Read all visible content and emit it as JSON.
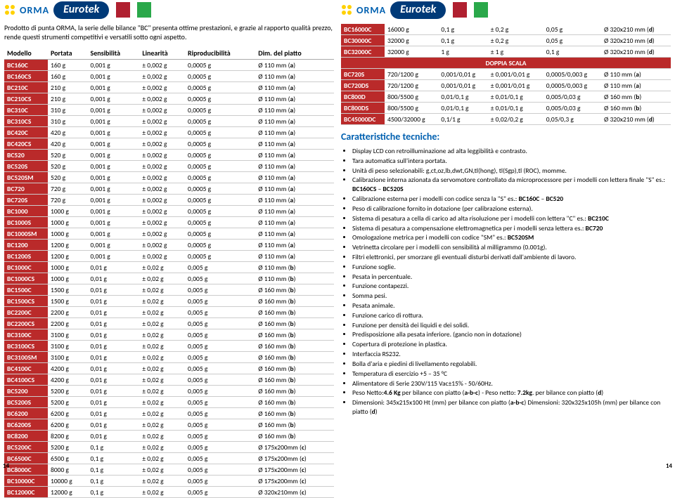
{
  "brand": {
    "a": "ORMA",
    "b": "Eurotek"
  },
  "intro": "Prodotto di punta ORMA, la serie delle bilance \"BC\" presenta ottime prestazioni, e grazie al rapporto qualità prezzo, rende questi strumenti competitivi e versatili sotto ogni aspetto.",
  "headers": [
    "Modello",
    "Portata",
    "Sensibilità",
    "Linearità",
    "Riproducibilità",
    "Dim. del piatto"
  ],
  "rowsL": [
    [
      "BC160C",
      "160 g",
      "0,001 g",
      "± 0,002 g",
      "0,0005 g",
      "Ø 110 mm (a)"
    ],
    [
      "BC160CS",
      "160 g",
      "0,001 g",
      "± 0,002 g",
      "0,0005 g",
      "Ø 110 mm (a)"
    ],
    [
      "BC210C",
      "210 g",
      "0,001 g",
      "± 0,002 g",
      "0,0005 g",
      "Ø 110 mm (a)"
    ],
    [
      "BC210CS",
      "210 g",
      "0,001 g",
      "± 0,002 g",
      "0,0005 g",
      "Ø 110 mm (a)"
    ],
    [
      "BC310C",
      "310 g",
      "0,001 g",
      "± 0,002 g",
      "0,0005 g",
      "Ø 110 mm (a)"
    ],
    [
      "BC310CS",
      "310 g",
      "0,001 g",
      "± 0,002 g",
      "0,0005 g",
      "Ø 110 mm (a)"
    ],
    [
      "BC420C",
      "420 g",
      "0,001 g",
      "± 0,002 g",
      "0,0005 g",
      "Ø 110 mm (a)"
    ],
    [
      "BC420CS",
      "420 g",
      "0,001 g",
      "± 0,002 g",
      "0,0005 g",
      "Ø 110 mm (a)"
    ],
    [
      "BC520",
      "520 g",
      "0,001 g",
      "± 0,002 g",
      "0,0005 g",
      "Ø 110 mm (a)"
    ],
    [
      "BC520S",
      "520 g",
      "0,001 g",
      "± 0,002 g",
      "0,0005 g",
      "Ø 110 mm (a)"
    ],
    [
      "BC520SM",
      "520 g",
      "0,001 g",
      "± 0,002 g",
      "0,0005 g",
      "Ø 110 mm (a)"
    ],
    [
      "BC720",
      "720 g",
      "0,001 g",
      "± 0,002 g",
      "0,0005 g",
      "Ø 110 mm (a)"
    ],
    [
      "BC720S",
      "720 g",
      "0,001 g",
      "± 0,002 g",
      "0,0005 g",
      "Ø 110 mm (a)"
    ],
    [
      "BC1000",
      "1000 g",
      "0,001 g",
      "± 0,002 g",
      "0,0005 g",
      "Ø 110 mm (a)"
    ],
    [
      "BC1000S",
      "1000 g",
      "0,001 g",
      "± 0,002 g",
      "0,0005 g",
      "Ø 110 mm (a)"
    ],
    [
      "BC1000SM",
      "1000 g",
      "0,001 g",
      "± 0,002 g",
      "0,0005 g",
      "Ø 110 mm (a)"
    ],
    [
      "BC1200",
      "1200 g",
      "0,001 g",
      "± 0,002 g",
      "0,0005 g",
      "Ø 110 mm (a)"
    ],
    [
      "BC1200S",
      "1200 g",
      "0,001 g",
      "± 0,002 g",
      "0,0005 g",
      "Ø 110 mm (a)"
    ],
    [
      "BC1000C",
      "1000 g",
      "0,01 g",
      "± 0,02 g",
      "0,005 g",
      "Ø 110 mm (b)"
    ],
    [
      "BC1000CS",
      "1000 g",
      "0,01 g",
      "± 0,02 g",
      "0,005 g",
      "Ø 110 mm (b)"
    ],
    [
      "BC1500C",
      "1500 g",
      "0,01 g",
      "± 0,02 g",
      "0,005 g",
      "Ø 160 mm (b)"
    ],
    [
      "BC1500CS",
      "1500 g",
      "0,01 g",
      "± 0,02 g",
      "0,005 g",
      "Ø 160 mm (b)"
    ],
    [
      "BC2200C",
      "2200 g",
      "0,01 g",
      "± 0,02 g",
      "0,005 g",
      "Ø 160 mm (b)"
    ],
    [
      "BC2200CS",
      "2200 g",
      "0,01 g",
      "± 0,02 g",
      "0,005 g",
      "Ø 160 mm (b)"
    ],
    [
      "BC3100C",
      "3100 g",
      "0,01 g",
      "± 0,02 g",
      "0,005 g",
      "Ø 160 mm (b)"
    ],
    [
      "BC3100CS",
      "3100 g",
      "0,01 g",
      "± 0,02 g",
      "0,005 g",
      "Ø 160 mm (b)"
    ],
    [
      "BC3100SM",
      "3100 g",
      "0,01 g",
      "± 0,02 g",
      "0,005 g",
      "Ø 160 mm (b)"
    ],
    [
      "BC4100C",
      "4200 g",
      "0,01 g",
      "± 0,02 g",
      "0,005 g",
      "Ø 160 mm (b)"
    ],
    [
      "BC4100CS",
      "4200 g",
      "0,01 g",
      "± 0,02 g",
      "0,005 g",
      "Ø 160 mm (b)"
    ],
    [
      "BC5200",
      "5200 g",
      "0,01 g",
      "± 0,02 g",
      "0,005 g",
      "Ø 160 mm (b)"
    ],
    [
      "BC5200S",
      "5200 g",
      "0,01 g",
      "± 0,02 g",
      "0,005 g",
      "Ø 160 mm (b)"
    ],
    [
      "BC6200",
      "6200 g",
      "0,01 g",
      "± 0,02 g",
      "0,005 g",
      "Ø 160 mm (b)"
    ],
    [
      "BC6200S",
      "6200 g",
      "0,01 g",
      "± 0,02 g",
      "0,005 g",
      "Ø 160 mm (b)"
    ],
    [
      "BC8200",
      "8200 g",
      "0,01 g",
      "± 0,02 g",
      "0,005 g",
      "Ø 160 mm (b)"
    ],
    [
      "BC5200C",
      "5200 g",
      "0,1 g",
      "± 0,02 g",
      "0,005 g",
      "Ø 175x200mm (c)"
    ],
    [
      "BC6500C",
      "6500 g",
      "0,1 g",
      "± 0,02 g",
      "0,005 g",
      "Ø 175x200mm (c)"
    ],
    [
      "BC8000C",
      "8000 g",
      "0,1 g",
      "± 0,02 g",
      "0,005 g",
      "Ø 175x200mm (c)"
    ],
    [
      "BC10000C",
      "10000 g",
      "0,1 g",
      "± 0,02 g",
      "0,005 g",
      "Ø 175x200mm (c)"
    ],
    [
      "BC12000C",
      "12000 g",
      "0,1 g",
      "± 0,02 g",
      "0,005 g",
      "Ø 320x210mm (c)"
    ]
  ],
  "rowsR1": [
    [
      "BC16000C",
      "16000 g",
      "0,1 g",
      "± 0,2 g",
      "0,05 g",
      "Ø 320x210 mm (d)"
    ],
    [
      "BC30000C",
      "32000 g",
      "0,1 g",
      "± 0,2 g",
      "0,05 g",
      "Ø 320x210 mm (d)"
    ],
    [
      "BC32000C",
      "32000 g",
      "1 g",
      "± 1 g",
      "0,1 g",
      "Ø 320x210 mm (d)"
    ]
  ],
  "doppia": "DOPPIA SCALA",
  "rowsR2": [
    [
      "BC720S",
      "720/1200 g",
      "0,001/0,01 g",
      "± 0,001/0,01 g",
      "0,0005/0,003 g",
      "Ø 110 mm (a)"
    ],
    [
      "BC720DS",
      "720/1200 g",
      "0,001/0,01 g",
      "± 0,001/0,01 g",
      "0,0005/0,003 g",
      "Ø 110 mm (a)"
    ],
    [
      "BC800D",
      "800/5500 g",
      "0,01/0,1 g",
      "± 0,01/0,1 g",
      "0,005/0,03 g",
      "Ø 160 mm (b)"
    ],
    [
      "BC800DS",
      "800/5500 g",
      "0,01/0,1 g",
      "± 0,01/0,1 g",
      "0,005/0,03 g",
      "Ø 160 mm (b)"
    ],
    [
      "BC45000DC",
      "4500/32000 g",
      "0,1/1 g",
      "± 0,02/0,2 g",
      "0,05/0,3 g",
      "Ø 320x210 mm (d)"
    ]
  ],
  "featuresTitle": "Caratteristiche tecniche:",
  "features": [
    "Display LCD con retroilluminazione ad alta leggibilità e contrasto.",
    "Tara automatica sull'intera portata.",
    "Unità di peso selezionabili: g,ct,oz,lb,dwt,GN,tl(hong), tl(Sgp),tl (ROC), momme.",
    "Calibrazione interna azionata da servomotore controllato da microprocessore per i modelli con lettera finale \"S\" es.: BC160CS – BC520S",
    "Calibrazione esterna per i modelli con codice senza la \"S\" es.: BC160C – BC520",
    "Peso di calibrazione fornito in dotazione (per calibrazione esterna).",
    "Sistema di pesatura a cella di carico ad alta risoluzione per i modelli con lettera \"C\" es.: BC210C",
    "Sistema di pesatura a compensazione elettromagnetica per i modelli senza lettera es.: BC720",
    "Omologazione metrica per i modelli con codice \"SM\" es.: BC520SM",
    "Vetrinetta circolare per i modelli con sensibilità al milligrammo (0.001g).",
    "Filtri elettronici, per smorzare gli eventuali disturbi derivati dall'ambiente di lavoro.",
    "Funzione soglie.",
    "Pesata in percentuale.",
    "Funzione contapezzi.",
    "Somma pesi.",
    "Pesata animale.",
    "Funzione carico di rottura.",
    "Funzione per densità dei liquidi e dei solidi.",
    "Predisposizione alla pesata inferiore. (gancio non in dotazione)",
    "Copertura di protezione in plastica.",
    "Interfaccia RS232.",
    "Bolla d'aria e piedini di livellamento regolabili.",
    "Temperatura di esercizio +5 – 35 °C",
    "Alimentatore di Serie 230V/115 Vac±15% - 50/60Hz.",
    "Peso Netto:4.6 Kg per bilance con piatto (a-b-c) - Peso netto: 7.2kg. per bilance con piatto (d)",
    "Dimensioni: 345x215x100 Ht (mm) per bilance con piatto (a-b-c) Dimensioni: 320x325x105h (mm) per bilance con piatto (d)"
  ],
  "pageno": "14"
}
